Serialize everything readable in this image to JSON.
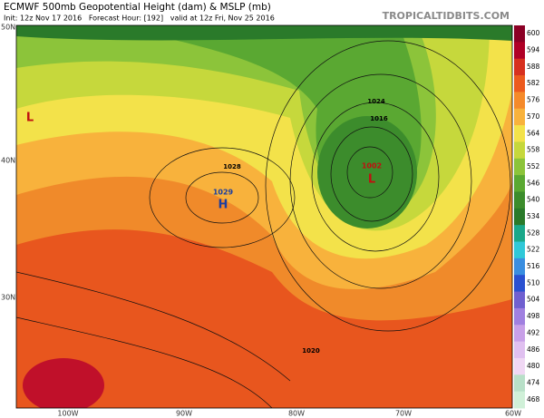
{
  "header": {
    "title": "ECMWF 500mb Geopotential Height (dam) & MSLP (mb)",
    "subtitle": "Init: 12z Nov 17 2016   Forecast Hour: [192]   valid at 12z Fri, Nov 25 2016",
    "watermark": "TROPICALTIDBITS.COM"
  },
  "map": {
    "lat_labels": [
      "50N",
      "40N",
      "30N"
    ],
    "lon_labels": [
      "100W",
      "90W",
      "80W",
      "70W",
      "60W"
    ],
    "pressure_labels": [
      "1029",
      "H",
      "1002",
      "L",
      "L",
      "1028",
      "1024",
      "1016",
      "1020"
    ]
  },
  "colorbar": {
    "labels": [
      600,
      594,
      588,
      582,
      576,
      570,
      564,
      558,
      552,
      546,
      540,
      534,
      528,
      522,
      516,
      510,
      504,
      498,
      492,
      486,
      480,
      474,
      468
    ]
  }
}
